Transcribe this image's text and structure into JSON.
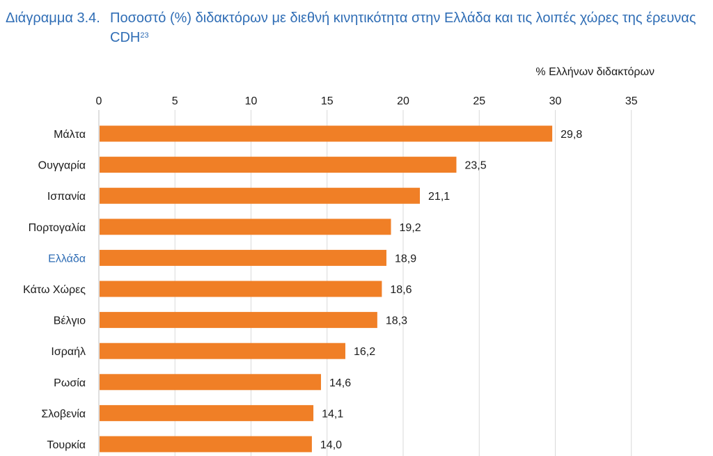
{
  "caption": {
    "label": "Διάγραμμα 3.4.",
    "text": "Ποσοστό (%) διδακτόρων με διεθνή κινητικότητα στην Ελλάδα και τις λοιπές χώρες της έρευνας CDH",
    "footnote": "23"
  },
  "colors": {
    "bar": "#f07f26",
    "caption": "#2f6db5",
    "highlight_label": "#2f6db5",
    "grid": "#d9d9d9",
    "text": "#1a1a1a"
  },
  "chart_data": {
    "type": "bar",
    "orientation": "horizontal",
    "title": "Ποσοστό (%) διδακτόρων με διεθνή κινητικότητα στην Ελλάδα και τις λοιπές χώρες της έρευνας CDH",
    "xlabel": "% Ελλήνων διδακτόρων",
    "ylabel": "",
    "xlim": [
      0,
      35
    ],
    "xticks": [
      0,
      5,
      10,
      15,
      20,
      25,
      30,
      35
    ],
    "x_axis_position": "top",
    "grid": true,
    "legend": "none",
    "highlight_category": "Ελλάδα",
    "categories": [
      "Μάλτα",
      "Ουγγαρία",
      "Ισπανία",
      "Πορτογαλία",
      "Ελλάδα",
      "Κάτω Χώρες",
      "Βέλγιο",
      "Ισραήλ",
      "Ρωσία",
      "Σλοβενία",
      "Τουρκία"
    ],
    "values": [
      29.8,
      23.5,
      21.1,
      19.2,
      18.9,
      18.6,
      18.3,
      16.2,
      14.6,
      14.1,
      14.0
    ]
  }
}
